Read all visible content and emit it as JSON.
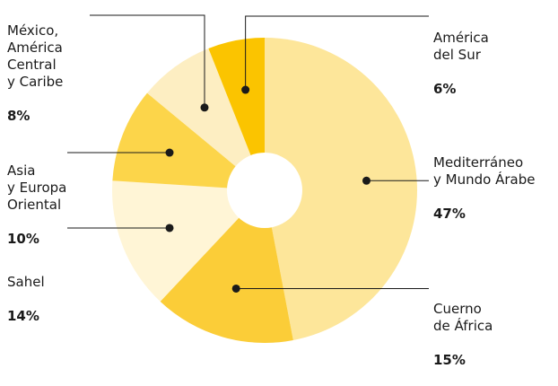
{
  "chart_data": {
    "type": "pie",
    "donut": true,
    "title": "",
    "slices": [
      {
        "label": "Mediterráneo\ny Mundo Árabe",
        "value": 47,
        "value_label": "47%",
        "color": "#fde69a"
      },
      {
        "label": "Cuerno\nde África",
        "value": 15,
        "value_label": "15%",
        "color": "#fbcd38"
      },
      {
        "label": "Sahel",
        "value": 14,
        "value_label": "14%",
        "color": "#fff5d6"
      },
      {
        "label": "Asia\ny Europa\nOriental",
        "value": 10,
        "value_label": "10%",
        "color": "#fcd54a"
      },
      {
        "label": "México,\nAmérica\nCentral\ny Caribe",
        "value": 8,
        "value_label": "8%",
        "color": "#fdeec2"
      },
      {
        "label": "América\ndel Sur",
        "value": 6,
        "value_label": "6%",
        "color": "#fbc400"
      }
    ],
    "marker_color": "#1a1a1a",
    "leader_color": "#1a1a1a"
  }
}
